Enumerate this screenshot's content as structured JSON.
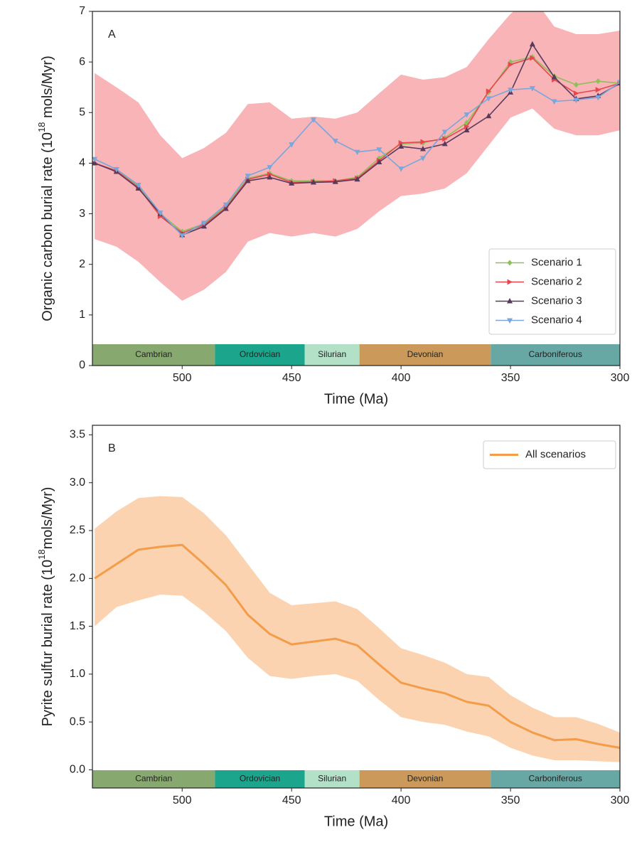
{
  "chart_data": [
    {
      "type": "line",
      "annotation": "A",
      "ylabel": [
        "Organic carbon burial rate (10",
        "18",
        " mols/Myr)"
      ],
      "xlabel": "Time (Ma)",
      "xlim": [
        541,
        300
      ],
      "xticks": [
        500,
        450,
        400,
        350,
        300
      ],
      "ylim": [
        0,
        7
      ],
      "yticks": [
        0,
        1,
        2,
        3,
        4,
        5,
        6,
        7
      ],
      "legend": "lower right",
      "x": [
        540,
        530,
        520,
        510,
        500,
        490,
        480,
        470,
        460,
        450,
        440,
        430,
        420,
        410,
        400,
        390,
        380,
        370,
        360,
        350,
        340,
        330,
        320,
        310,
        300
      ],
      "band": {
        "color": "#f8b4b7",
        "upper": [
          5.78,
          5.5,
          5.2,
          4.55,
          4.1,
          4.3,
          4.6,
          5.17,
          5.2,
          4.88,
          4.92,
          4.88,
          5.0,
          5.38,
          5.75,
          5.65,
          5.7,
          5.9,
          6.45,
          6.95,
          7.3,
          6.7,
          6.55,
          6.55,
          6.62
        ],
        "lower": [
          2.5,
          2.35,
          2.05,
          1.65,
          1.28,
          1.5,
          1.85,
          2.45,
          2.62,
          2.55,
          2.62,
          2.55,
          2.7,
          3.05,
          3.35,
          3.4,
          3.5,
          3.8,
          4.35,
          4.9,
          5.08,
          4.68,
          4.55,
          4.55,
          4.65
        ]
      },
      "series": [
        {
          "name": "Scenario 1",
          "color": "#8dbf5a",
          "marker": "diamond",
          "values": [
            4.0,
            3.85,
            3.55,
            3.0,
            2.65,
            2.8,
            3.15,
            3.7,
            3.8,
            3.65,
            3.65,
            3.65,
            3.72,
            4.1,
            4.38,
            4.4,
            4.5,
            4.8,
            5.4,
            6.0,
            6.1,
            5.72,
            5.55,
            5.62,
            5.58
          ]
        },
        {
          "name": "Scenario 2",
          "color": "#e8474f",
          "marker": "triangle-right",
          "values": [
            4.0,
            3.85,
            3.52,
            2.95,
            2.62,
            2.78,
            3.12,
            3.68,
            3.78,
            3.62,
            3.63,
            3.65,
            3.7,
            4.05,
            4.4,
            4.42,
            4.48,
            4.72,
            5.42,
            5.95,
            6.08,
            5.65,
            5.38,
            5.45,
            5.58
          ]
        },
        {
          "name": "Scenario 3",
          "color": "#5a3a5c",
          "marker": "triangle-up",
          "values": [
            4.0,
            3.83,
            3.5,
            3.0,
            2.58,
            2.75,
            3.1,
            3.65,
            3.72,
            3.6,
            3.62,
            3.63,
            3.68,
            4.02,
            4.33,
            4.28,
            4.38,
            4.65,
            4.93,
            5.4,
            6.35,
            5.7,
            5.27,
            5.33,
            5.58
          ]
        },
        {
          "name": "Scenario 4",
          "color": "#7aa6dc",
          "marker": "triangle-down",
          "values": [
            4.08,
            3.88,
            3.57,
            3.02,
            2.57,
            2.82,
            3.18,
            3.75,
            3.92,
            4.37,
            4.86,
            4.44,
            4.22,
            4.27,
            3.89,
            4.1,
            4.62,
            4.96,
            5.28,
            5.45,
            5.48,
            5.22,
            5.25,
            5.3,
            5.6
          ]
        }
      ],
      "periods": [
        {
          "name": "Cambrian",
          "start": 541,
          "end": 485,
          "color": "#87a86e"
        },
        {
          "name": "Ordovician",
          "start": 485,
          "end": 444,
          "color": "#1aa58c"
        },
        {
          "name": "Silurian",
          "start": 444,
          "end": 419,
          "color": "#b3e1c8"
        },
        {
          "name": "Devonian",
          "start": 419,
          "end": 359,
          "color": "#cb9a5a"
        },
        {
          "name": "Carboniferous",
          "start": 359,
          "end": 300,
          "color": "#67a7a4"
        }
      ]
    },
    {
      "type": "line",
      "annotation": "B",
      "ylabel": [
        "Pyrite sulfur burial rate (10",
        "18",
        "mols/Myr)"
      ],
      "xlabel": "Time (Ma)",
      "xlim": [
        541,
        300
      ],
      "xticks": [
        500,
        450,
        400,
        350,
        300
      ],
      "ylim": [
        -0.19,
        3.6
      ],
      "yticks": [
        {
          "value": 0,
          "label": "0.0"
        },
        0.5,
        {
          "value": 1,
          "label": "1.0"
        },
        1.5,
        {
          "value": 2,
          "label": "2.0"
        },
        2.5,
        {
          "value": 3,
          "label": "3.0"
        },
        3.5
      ],
      "legend": "upper right",
      "x": [
        540,
        530,
        520,
        510,
        500,
        490,
        480,
        470,
        460,
        450,
        440,
        430,
        420,
        410,
        400,
        390,
        380,
        370,
        360,
        350,
        340,
        330,
        320,
        310,
        300
      ],
      "band": {
        "color": "#fcd3b0",
        "upper": [
          2.52,
          2.7,
          2.84,
          2.86,
          2.85,
          2.68,
          2.45,
          2.15,
          1.85,
          1.72,
          1.74,
          1.76,
          1.68,
          1.48,
          1.27,
          1.2,
          1.12,
          1.0,
          0.97,
          0.78,
          0.65,
          0.55,
          0.55,
          0.48,
          0.39
        ],
        "lower": [
          1.5,
          1.7,
          1.77,
          1.83,
          1.82,
          1.65,
          1.45,
          1.17,
          0.98,
          0.95,
          0.98,
          1.0,
          0.93,
          0.73,
          0.55,
          0.5,
          0.47,
          0.4,
          0.35,
          0.23,
          0.15,
          0.1,
          0.1,
          0.09,
          0.08
        ]
      },
      "series": [
        {
          "name": "All scenarios",
          "color": "#f39c4a",
          "values": [
            2.0,
            2.15,
            2.3,
            2.33,
            2.35,
            2.15,
            1.93,
            1.62,
            1.42,
            1.31,
            1.34,
            1.37,
            1.3,
            1.1,
            0.91,
            0.85,
            0.8,
            0.71,
            0.67,
            0.5,
            0.39,
            0.31,
            0.32,
            0.27,
            0.23
          ]
        }
      ],
      "periods": [
        {
          "name": "Cambrian",
          "start": 541,
          "end": 485,
          "color": "#87a86e"
        },
        {
          "name": "Ordovician",
          "start": 485,
          "end": 444,
          "color": "#1aa58c"
        },
        {
          "name": "Silurian",
          "start": 444,
          "end": 419,
          "color": "#b3e1c8"
        },
        {
          "name": "Devonian",
          "start": 419,
          "end": 359,
          "color": "#cb9a5a"
        },
        {
          "name": "Carboniferous",
          "start": 359,
          "end": 300,
          "color": "#67a7a4"
        }
      ]
    }
  ]
}
